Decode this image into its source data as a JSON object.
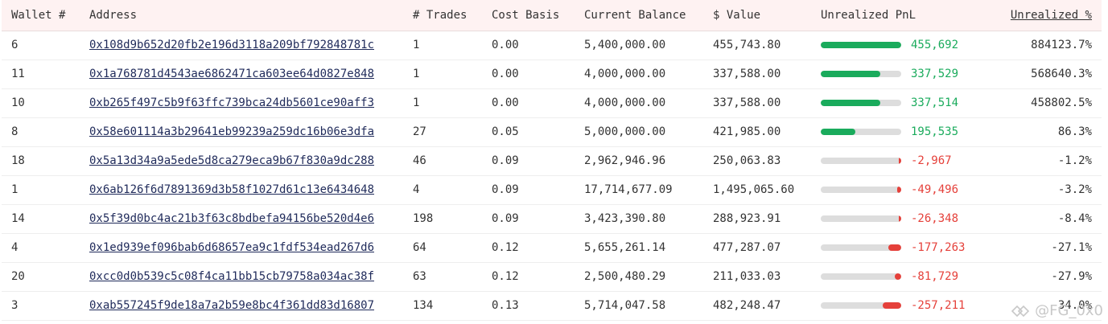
{
  "columns": {
    "wallet": "Wallet #",
    "address": "Address",
    "trades": "# Trades",
    "cost_basis": "Cost Basis",
    "current_balance": "Current Balance",
    "usd_value": "$ Value",
    "unrealized_pnl": "Unrealized PnL",
    "unrealized_pct": "Unrealized %"
  },
  "colors": {
    "positive": "#1aab5c",
    "negative": "#e5403a",
    "bar_track": "#dddddd",
    "header_bg": "#fef2f2"
  },
  "rows": [
    {
      "wallet": "6",
      "address": "0x108d9b652d20fb2e196d3118a209bf792848781c",
      "trades": "1",
      "cost_basis": "0.00",
      "balance": "5,400,000.00",
      "value": "455,743.80",
      "pnl": "455,692",
      "pnl_sign": "pos",
      "pnl_fraction": 1.0,
      "pct": "884123.7%"
    },
    {
      "wallet": "11",
      "address": "0x1a768781d4543ae6862471ca603ee64d0827e848",
      "trades": "1",
      "cost_basis": "0.00",
      "balance": "4,000,000.00",
      "value": "337,588.00",
      "pnl": "337,529",
      "pnl_sign": "pos",
      "pnl_fraction": 0.74,
      "pct": "568640.3%"
    },
    {
      "wallet": "10",
      "address": "0xb265f497c5b9f63ffc739bca24db5601ce90aff3",
      "trades": "1",
      "cost_basis": "0.00",
      "balance": "4,000,000.00",
      "value": "337,588.00",
      "pnl": "337,514",
      "pnl_sign": "pos",
      "pnl_fraction": 0.74,
      "pct": "458802.5%"
    },
    {
      "wallet": "8",
      "address": "0x58e601114a3b29641eb99239a259dc16b06e3dfa",
      "trades": "27",
      "cost_basis": "0.05",
      "balance": "5,000,000.00",
      "value": "421,985.00",
      "pnl": "195,535",
      "pnl_sign": "pos",
      "pnl_fraction": 0.43,
      "pct": "86.3%"
    },
    {
      "wallet": "18",
      "address": "0x5a13d34a9a5ede5d8ca279eca9b67f830a9dc288",
      "trades": "46",
      "cost_basis": "0.09",
      "balance": "2,962,946.96",
      "value": "250,063.83",
      "pnl": "-2,967",
      "pnl_sign": "neg",
      "pnl_fraction": 0.02,
      "pct": "-1.2%"
    },
    {
      "wallet": "1",
      "address": "0x6ab126f6d7891369d3b58f1027d61c13e6434648",
      "trades": "4",
      "cost_basis": "0.09",
      "balance": "17,714,677.09",
      "value": "1,495,065.60",
      "pnl": "-49,496",
      "pnl_sign": "neg",
      "pnl_fraction": 0.05,
      "pct": "-3.2%"
    },
    {
      "wallet": "14",
      "address": "0x5f39d0bc4ac21b3f63c8bdbefa94156be520d4e6",
      "trades": "198",
      "cost_basis": "0.09",
      "balance": "3,423,390.80",
      "value": "288,923.91",
      "pnl": "-26,348",
      "pnl_sign": "neg",
      "pnl_fraction": 0.03,
      "pct": "-8.4%"
    },
    {
      "wallet": "4",
      "address": "0x1ed939ef096bab6d68657ea9c1fdf534ead267d6",
      "trades": "64",
      "cost_basis": "0.12",
      "balance": "5,655,261.14",
      "value": "477,287.07",
      "pnl": "-177,263",
      "pnl_sign": "neg",
      "pnl_fraction": 0.16,
      "pct": "-27.1%"
    },
    {
      "wallet": "20",
      "address": "0xcc0d0b539c5c08f4ca11bb15cb79758a034ac38f",
      "trades": "63",
      "cost_basis": "0.12",
      "balance": "2,500,480.29",
      "value": "211,033.03",
      "pnl": "-81,729",
      "pnl_sign": "neg",
      "pnl_fraction": 0.08,
      "pct": "-27.9%"
    },
    {
      "wallet": "3",
      "address": "0xab557245f9de18a7a2b59e8bc4f361dd83d16807",
      "trades": "134",
      "cost_basis": "0.13",
      "balance": "5,714,047.58",
      "value": "482,248.47",
      "pnl": "-257,211",
      "pnl_sign": "neg",
      "pnl_fraction": 0.23,
      "pct": "-34.0%"
    }
  ],
  "watermark": {
    "text": "@FG_0x0",
    "icon": "diamond-logo-icon"
  }
}
